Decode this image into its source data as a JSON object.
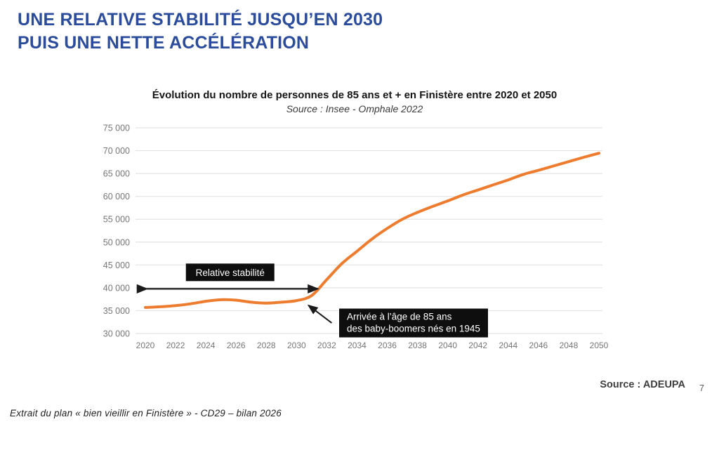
{
  "slide": {
    "heading_line1": "UNE RELATIVE STABILITÉ JUSQU’EN 2030",
    "heading_line2": "PUIS UNE NETTE ACCÉLÉRATION",
    "source_label": "Source : ADEUPA",
    "page_number": "7",
    "footer_note": "Extrait du plan « bien vieillir en Finistère » - CD29 – bilan 2026"
  },
  "colors": {
    "heading_blue": "#2B4C9C",
    "line_orange": "#ED7C2F",
    "grid_gray": "#E3E3E3",
    "axis_label_gray": "#767676",
    "annotation_black": "#0E0E0E"
  },
  "chart_data": {
    "type": "line",
    "title": "Évolution du nombre de personnes de 85 ans et + en Finistère entre 2020 et 2050",
    "subtitle": "Source : Insee - Omphale 2022",
    "xlabel": "",
    "ylabel": "",
    "xlim": [
      2020,
      2050
    ],
    "ylim": [
      30000,
      75000
    ],
    "x_ticks": [
      2020,
      2022,
      2024,
      2026,
      2028,
      2030,
      2032,
      2034,
      2036,
      2038,
      2040,
      2042,
      2044,
      2046,
      2048,
      2050
    ],
    "y_ticks": [
      30000,
      35000,
      40000,
      45000,
      50000,
      55000,
      60000,
      65000,
      70000,
      75000
    ],
    "grid": true,
    "legend": "none",
    "line_color": "#ED7C2F",
    "series": [
      {
        "name": "Nombre de personnes de 85 ans et +",
        "x": [
          2020,
          2021,
          2022,
          2023,
          2024,
          2025,
          2026,
          2027,
          2028,
          2029,
          2030,
          2031,
          2032,
          2033,
          2034,
          2035,
          2036,
          2037,
          2038,
          2039,
          2040,
          2041,
          2042,
          2043,
          2044,
          2045,
          2046,
          2047,
          2048,
          2049,
          2050
        ],
        "values": [
          35700,
          35850,
          36100,
          36500,
          37050,
          37400,
          37300,
          36850,
          36650,
          36850,
          37200,
          38300,
          41800,
          45300,
          48000,
          50700,
          53000,
          55000,
          56500,
          57800,
          59000,
          60300,
          61400,
          62500,
          63600,
          64800,
          65700,
          66650,
          67600,
          68550,
          69450
        ]
      }
    ],
    "annotations": [
      {
        "kind": "span-arrow-box",
        "text": "Relative stabilité",
        "span_years": [
          2020,
          2031.4
        ],
        "arrow_value": 40000
      },
      {
        "kind": "callout-box",
        "line1": "Arrivée à l’âge de 85 ans",
        "line2": "des baby-boomers nés en 1945",
        "target_year": 2030.7,
        "target_value": 36300
      }
    ]
  }
}
